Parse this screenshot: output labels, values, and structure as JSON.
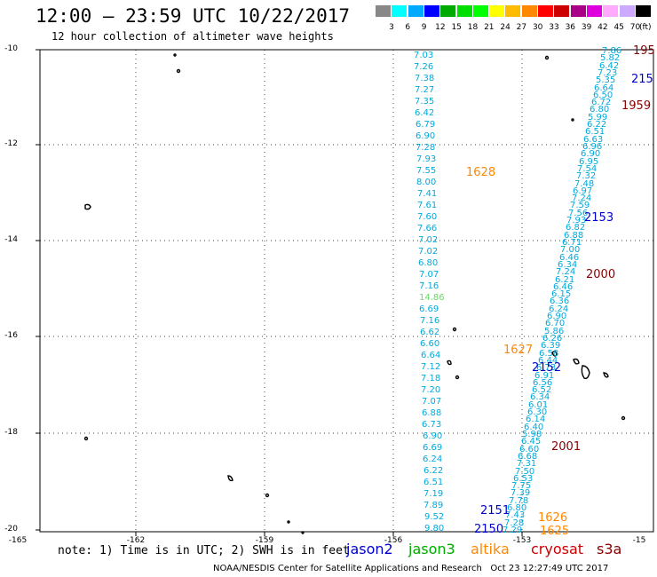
{
  "header": {
    "title": "12:00 – 23:59 UTC 10/22/2017",
    "subtitle": "12 hour collection of altimeter wave heights"
  },
  "scale": {
    "unit": "(ft)",
    "colors": [
      "#888888",
      "#00ffff",
      "#00aaff",
      "#0000ff",
      "#00aa00",
      "#00dd00",
      "#00ff00",
      "#ffff00",
      "#ffbb00",
      "#ff8800",
      "#ff0000",
      "#cc0000",
      "#aa0088",
      "#dd00dd",
      "#ffaaff",
      "#ccaaff",
      "#000000"
    ],
    "labels": [
      "3",
      "6",
      "9",
      "12",
      "15",
      "18",
      "21",
      "24",
      "27",
      "30",
      "33",
      "36",
      "39",
      "42",
      "45",
      "70"
    ]
  },
  "axes": {
    "lat_labels": [
      "-10",
      "-12",
      "-14",
      "-16",
      "-18",
      "-20"
    ],
    "lon_labels": [
      "-165",
      "-162",
      "-159",
      "-156",
      "-153",
      "-15"
    ]
  },
  "observations": {
    "left_track": [
      "7.03",
      "7.26",
      "7.38",
      "7.27",
      "7.35",
      "6.42",
      "6.79",
      "6.90",
      "7.28",
      "7.93",
      "7.55",
      "8.00",
      "7.41",
      "7.61",
      "7.60",
      "7.66",
      "7.02",
      "7.02",
      "6.80",
      "7.07",
      "7.16",
      "14.86",
      "6.69",
      "7.16",
      "6.62",
      "6.60",
      "6.64",
      "7.12",
      "7.18",
      "7.20",
      "7.07",
      "6.88",
      "6.73",
      "6.90",
      "6.69",
      "6.24",
      "6.22",
      "6.51",
      "7.19",
      "7.89",
      "9.52",
      "9.80"
    ],
    "right_track": [
      "7.86",
      "5.82",
      "6.42",
      "7.23",
      "5.35",
      "6.64",
      "6.50",
      "6.72",
      "6.80",
      "5.99",
      "6.22",
      "6.51",
      "6.63",
      "6.96",
      "6.90",
      "6.95",
      "7.54",
      "7.32",
      "7.48",
      "6.97",
      "7.24",
      "7.59",
      "7.56",
      "7.93",
      "6.82",
      "6.88",
      "6.71",
      "7.00",
      "6.46",
      "6.34",
      "7.24",
      "6.21",
      "6.46",
      "6.15",
      "6.36",
      "6.24",
      "6.90",
      "6.70",
      "5.86",
      "6.26",
      "6.39",
      "6.58",
      "6.44",
      "6.73",
      "6.91",
      "6.56",
      "6.52",
      "6.34",
      "6.01",
      "6.30",
      "6.14",
      "6.40",
      "5.98",
      "6.45",
      "6.60",
      "6.68",
      "7.31",
      "7.50",
      "6.53",
      "7.75",
      "7.39",
      "7.78",
      "6.80",
      "7.43",
      "7.28",
      "7.29"
    ]
  },
  "track_labels": [
    {
      "text": "195",
      "color": "#880000"
    },
    {
      "text": "215",
      "color": "#0000cc"
    },
    {
      "text": "1959",
      "color": "#880000"
    },
    {
      "text": "1628",
      "color": "#ff8800"
    },
    {
      "text": "2153",
      "color": "#0000cc"
    },
    {
      "text": "2000",
      "color": "#880000"
    },
    {
      "text": "1627",
      "color": "#ff8800"
    },
    {
      "text": "2152",
      "color": "#0000cc"
    },
    {
      "text": "2001",
      "color": "#880000"
    },
    {
      "text": "2151",
      "color": "#0000cc"
    },
    {
      "text": "1626",
      "color": "#ff8800"
    },
    {
      "text": "2150",
      "color": "#0000cc"
    },
    {
      "text": "1625",
      "color": "#ff8800"
    }
  ],
  "footer": {
    "note": "note: 1) Time is in UTC; 2) SWH is in feet",
    "legend": [
      {
        "text": "jason2",
        "color": "#0000cc"
      },
      {
        "text": "jason3",
        "color": "#00aa00"
      },
      {
        "text": "altika",
        "color": "#ff8800"
      },
      {
        "text": "cryosat",
        "color": "#cc0000"
      },
      {
        "text": "s3a",
        "color": "#880000"
      }
    ],
    "credit": "NOAA/NESDIS Center for Satellite Applications and Research   Oct 23 12:27:49 UTC 2017"
  }
}
